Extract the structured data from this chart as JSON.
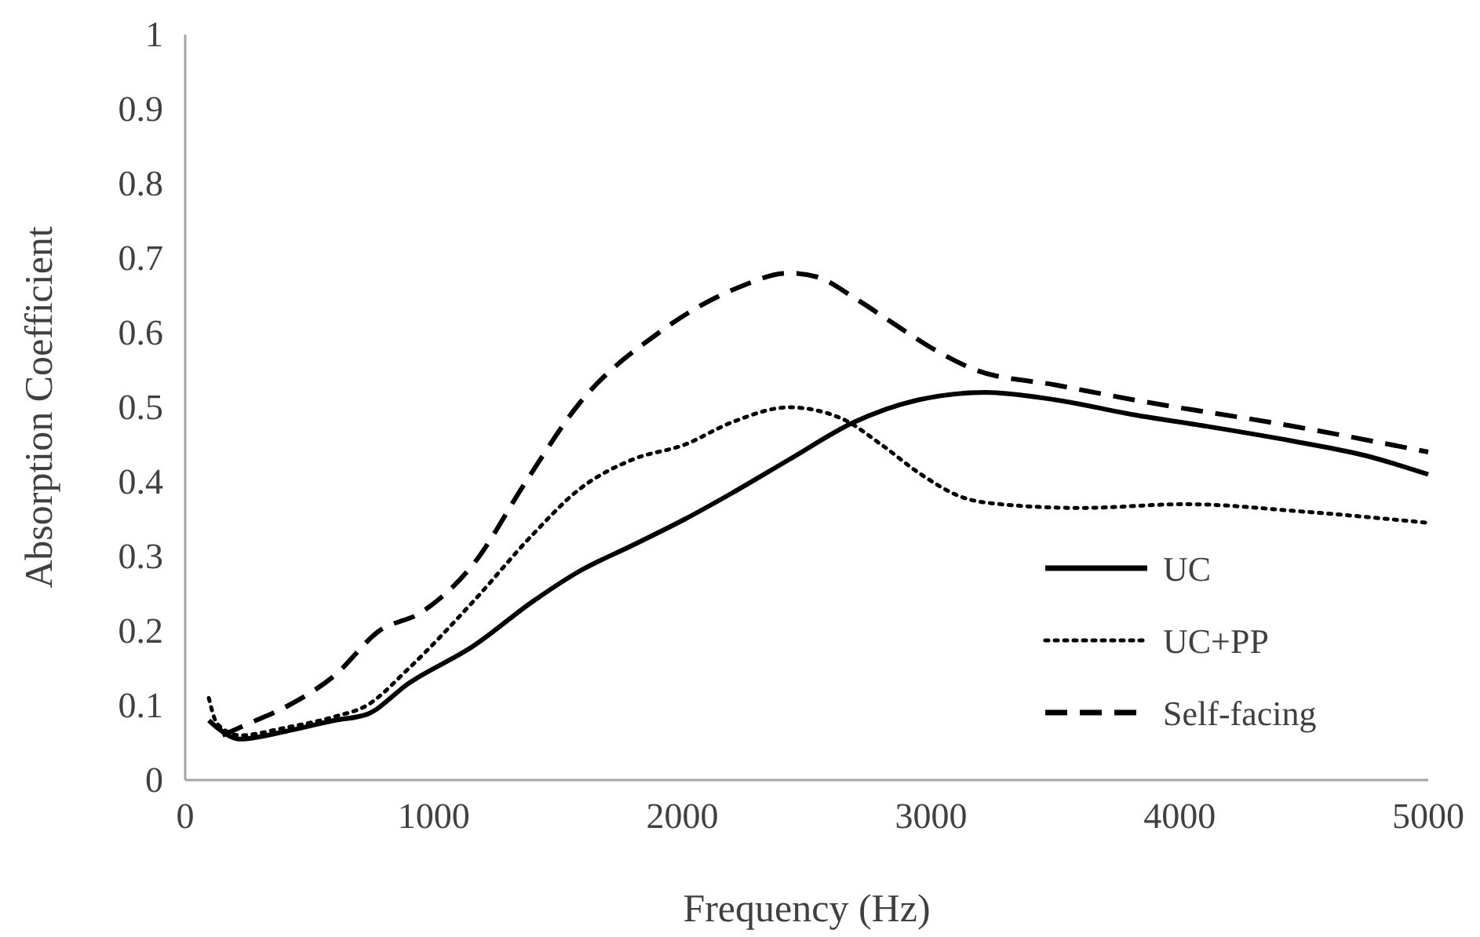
{
  "chart_data": {
    "type": "line",
    "xlabel": "Frequency (Hz)",
    "ylabel": "Absorption Coefficient",
    "xlim": [
      0,
      5000
    ],
    "xticks": [
      0,
      1000,
      2000,
      3000,
      4000,
      5000
    ],
    "ylim": [
      0,
      1
    ],
    "yticks": [
      0,
      0.1,
      0.2,
      0.3,
      0.4,
      0.5,
      0.6,
      0.7,
      0.8,
      0.9,
      1
    ],
    "grid": false,
    "legend": "right",
    "marker": "none",
    "series": [
      {
        "name": "UC",
        "color": "#000000",
        "line_style": "solid",
        "x": [
          95,
          130,
          220,
          400,
          600,
          730,
          900,
          1160,
          1400,
          1585,
          1800,
          2010,
          2200,
          2430,
          2690,
          2950,
          3220,
          3500,
          3815,
          4100,
          4450,
          4750,
          5000
        ],
        "values": [
          0.08,
          0.07,
          0.055,
          0.065,
          0.08,
          0.088,
          0.13,
          0.18,
          0.24,
          0.28,
          0.315,
          0.35,
          0.385,
          0.43,
          0.48,
          0.51,
          0.52,
          0.51,
          0.49,
          0.475,
          0.455,
          0.435,
          0.41
        ]
      },
      {
        "name": "UC+PP",
        "color": "#000000",
        "line_style": "dotted",
        "x": [
          95,
          130,
          220,
          400,
          600,
          730,
          900,
          1160,
          1400,
          1585,
          1800,
          2010,
          2200,
          2430,
          2640,
          2800,
          2960,
          3120,
          3280,
          3600,
          4025,
          4500,
          5000
        ],
        "values": [
          0.11,
          0.075,
          0.06,
          0.07,
          0.085,
          0.1,
          0.15,
          0.24,
          0.33,
          0.39,
          0.43,
          0.45,
          0.48,
          0.5,
          0.485,
          0.45,
          0.41,
          0.38,
          0.37,
          0.365,
          0.37,
          0.36,
          0.345
        ]
      },
      {
        "name": "Self-facing",
        "color": "#000000",
        "line_style": "dashed",
        "x": [
          150,
          250,
          415,
          600,
          780,
          950,
          1160,
          1370,
          1585,
          1905,
          2220,
          2430,
          2540,
          2700,
          2860,
          3000,
          3180,
          3500,
          3815,
          4450,
          5000
        ],
        "values": [
          0.06,
          0.075,
          0.1,
          0.14,
          0.2,
          0.225,
          0.29,
          0.4,
          0.505,
          0.6,
          0.66,
          0.68,
          0.675,
          0.645,
          0.61,
          0.58,
          0.55,
          0.53,
          0.51,
          0.475,
          0.44
        ]
      }
    ]
  }
}
